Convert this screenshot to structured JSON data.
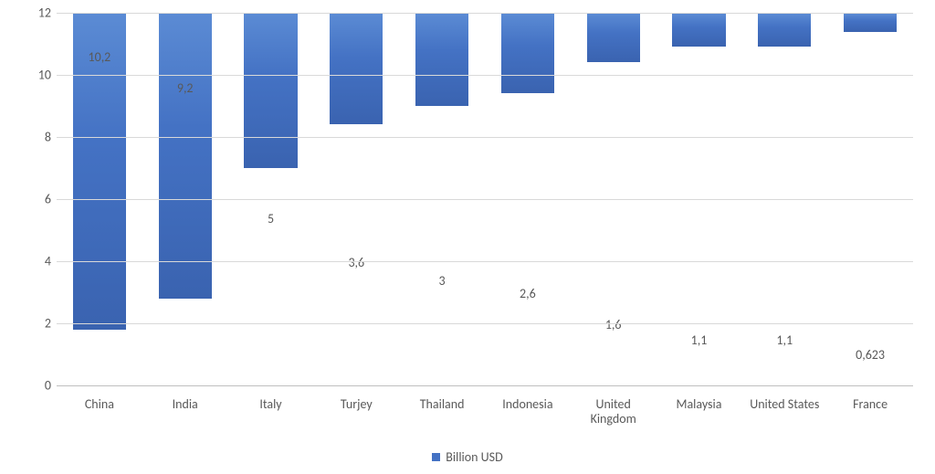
{
  "chart": {
    "type": "bar",
    "categories": [
      "China",
      "India",
      "Italy",
      "Turjey",
      "Thailand",
      "Indonesia",
      "United Kingdom",
      "Malaysia",
      "United States",
      "France"
    ],
    "values": [
      10.2,
      9.2,
      5,
      3.6,
      3,
      2.6,
      1.6,
      1.1,
      1.1,
      0.623
    ],
    "value_labels": [
      "10,2",
      "9,2",
      "5",
      "3,6",
      "3",
      "2,6",
      "1,6",
      "1,1",
      "1,1",
      "0,623"
    ],
    "ylim": [
      0,
      12
    ],
    "ytick_step": 2,
    "yticks": [
      0,
      2,
      4,
      6,
      8,
      10,
      12
    ],
    "bar_color": "#4472c4",
    "bar_border_color": "#2f528f",
    "grid_color": "#d9d9d9",
    "axis_color": "#bfbfbf",
    "text_color": "#595959",
    "background_color": "#ffffff",
    "bar_width": 0.62,
    "label_fontsize": 14,
    "tick_fontsize": 14,
    "value_fontsize": 14,
    "legend": {
      "label": "Billion USD",
      "swatch_color": "#4472c4",
      "fontsize": 14
    }
  }
}
